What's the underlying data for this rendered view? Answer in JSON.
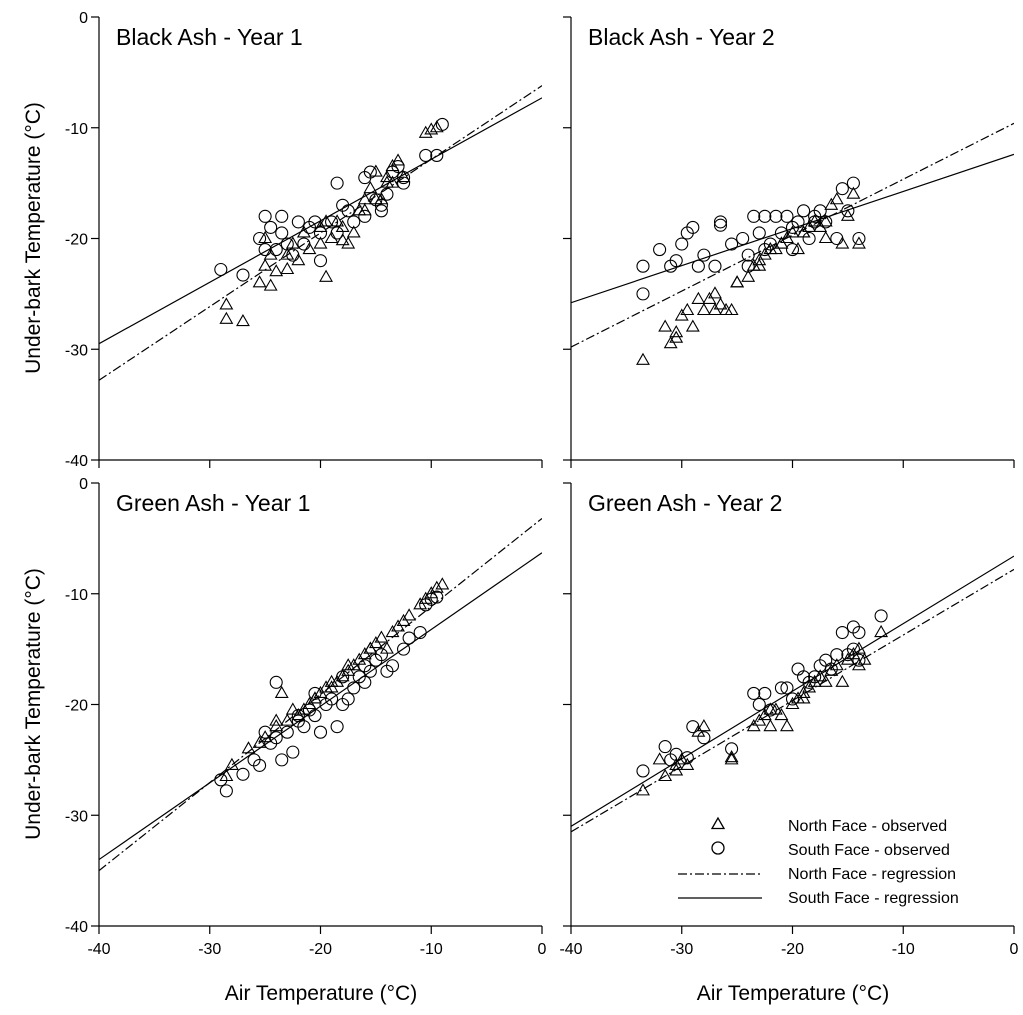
{
  "figure": {
    "xlabel": "Air Temperature (°C)",
    "ylabel": "Under-bark Temperature (°C)"
  },
  "legend": {
    "placement": "bottom-right of Green Ash - Year 2 panel",
    "entries": [
      {
        "label": "North Face - observed",
        "symbol": "triangle"
      },
      {
        "label": "South Face - observed",
        "symbol": "circle"
      },
      {
        "label": "North Face - regression",
        "symbol": "dash-dot-line"
      },
      {
        "label": "South Face - regression",
        "symbol": "solid-line"
      }
    ]
  },
  "chart_data": [
    {
      "type": "scatter",
      "title": "Black Ash - Year 1",
      "xlabel": "",
      "ylabel": "Under-bark Temperature (°C)",
      "xlim": [
        -40,
        0
      ],
      "ylim": [
        -40,
        0
      ],
      "xticks": [
        -40,
        -30,
        -20,
        -10,
        0
      ],
      "yticks": [
        0,
        -10,
        -20,
        -30,
        -40
      ],
      "show_xtick_labels": false,
      "show_ytick_labels": true,
      "series": [
        {
          "name": "North Face - observed",
          "marker": "triangle",
          "x": [
            -28.5,
            -28.5,
            -27,
            -25.5,
            -25,
            -24.5,
            -24,
            -23,
            -22,
            -21,
            -20,
            -19.5,
            -19,
            -18,
            -17,
            -16,
            -15.5,
            -15,
            -14.5,
            -14,
            -13.5,
            -13,
            -12.5,
            -10.5,
            -10,
            -9.5,
            -25,
            -23,
            -21.5,
            -20,
            -18.5,
            -16.5,
            -15,
            -13.5,
            -22.5,
            -19.5,
            -17.5,
            -16,
            -14,
            -24.5,
            -18
          ],
          "y": [
            -27.3,
            -26,
            -27.5,
            -24,
            -22.5,
            -24.3,
            -23,
            -21.5,
            -22,
            -21,
            -20.5,
            -23.5,
            -20,
            -19,
            -19.5,
            -16.5,
            -15.5,
            -14,
            -16.5,
            -15,
            -13.5,
            -13,
            -14.5,
            -10.5,
            -10.2,
            -10,
            -20,
            -22.8,
            -19.5,
            -19,
            -18.5,
            -17.5,
            -16.5,
            -15,
            -20.5,
            -18.5,
            -20.5,
            -17.5,
            -14.5,
            -21.5,
            -20.2
          ]
        },
        {
          "name": "South Face - observed",
          "marker": "circle",
          "x": [
            -29,
            -27,
            -25.5,
            -25,
            -24.5,
            -24,
            -23.5,
            -23,
            -22,
            -21.5,
            -21,
            -20.5,
            -20,
            -19,
            -18.5,
            -18.5,
            -17.5,
            -17,
            -16,
            -15.5,
            -15,
            -14.5,
            -14,
            -13.5,
            -13,
            -12.5,
            -10.5,
            -9.5,
            -9,
            -25,
            -23.5,
            -22.5,
            -20,
            -18,
            -16,
            -14.5,
            -12.5
          ],
          "y": [
            -22.8,
            -23.3,
            -20,
            -18,
            -19,
            -21,
            -19.5,
            -20.5,
            -18.5,
            -20.5,
            -19,
            -18.5,
            -22,
            -18.5,
            -15,
            -19.5,
            -17.5,
            -18.5,
            -14.5,
            -14,
            -16.5,
            -17,
            -16,
            -14,
            -13.5,
            -15,
            -12.5,
            -12.5,
            -9.7,
            -21,
            -18,
            -21.5,
            -19.5,
            -17,
            -18,
            -17.5,
            -14.5
          ]
        },
        {
          "name": "North Face - regression",
          "line": "dash-dot",
          "x": [
            -40,
            0
          ],
          "y": [
            -32.8,
            -6.2
          ]
        },
        {
          "name": "South Face - regression",
          "line": "solid",
          "x": [
            -40,
            0
          ],
          "y": [
            -29.5,
            -7.3
          ]
        }
      ]
    },
    {
      "type": "scatter",
      "title": "Black Ash - Year 2",
      "xlabel": "",
      "ylabel": "",
      "xlim": [
        -40,
        0
      ],
      "ylim": [
        -40,
        0
      ],
      "xticks": [
        -40,
        -30,
        -20,
        -10,
        0
      ],
      "yticks": [
        0,
        -10,
        -20,
        -30,
        -40
      ],
      "show_xtick_labels": false,
      "show_ytick_labels": false,
      "series": [
        {
          "name": "North Face - observed",
          "marker": "triangle",
          "x": [
            -33.5,
            -31.5,
            -31,
            -30.5,
            -30,
            -29.5,
            -29,
            -28.5,
            -28,
            -27.5,
            -27,
            -26.5,
            -26,
            -25.5,
            -25,
            -24,
            -23.5,
            -23,
            -22.5,
            -22,
            -21.5,
            -21,
            -20.5,
            -20,
            -19.5,
            -19,
            -18.5,
            -18,
            -17.5,
            -17,
            -16.5,
            -16,
            -15.5,
            -15,
            -14.5,
            -14,
            -30.5,
            -27,
            -25,
            -23,
            -21,
            -19,
            -17
          ],
          "y": [
            -31,
            -28,
            -29.5,
            -28.5,
            -27,
            -26.5,
            -28,
            -25.5,
            -26.5,
            -25.5,
            -26.5,
            -26,
            -26.5,
            -26.5,
            -24,
            -23.5,
            -22.5,
            -22,
            -21.5,
            -21,
            -21,
            -20.5,
            -20,
            -19.5,
            -21,
            -19.5,
            -19,
            -18.5,
            -19,
            -18.5,
            -17,
            -16.5,
            -20.5,
            -18,
            -16,
            -20.5,
            -29,
            -25,
            -24,
            -22.5,
            -20.5,
            -19.5,
            -20
          ]
        },
        {
          "name": "South Face - observed",
          "marker": "circle",
          "x": [
            -33.5,
            -33.5,
            -32,
            -31,
            -30.5,
            -30,
            -29.5,
            -29,
            -28.5,
            -28,
            -27,
            -26.5,
            -25.5,
            -24.5,
            -24,
            -23.5,
            -23,
            -22.5,
            -22,
            -21.5,
            -21,
            -20.5,
            -20,
            -19.5,
            -19,
            -18.5,
            -18,
            -17.5,
            -17,
            -16,
            -15.5,
            -15,
            -14.5,
            -14,
            -26.5,
            -24,
            -22.5,
            -20,
            -18
          ],
          "y": [
            -22.5,
            -25,
            -21,
            -22.5,
            -22,
            -20.5,
            -19.5,
            -19,
            -22.5,
            -21.5,
            -22.5,
            -18.5,
            -20.5,
            -20,
            -21.5,
            -18,
            -19.5,
            -18,
            -20.5,
            -18,
            -19.5,
            -18,
            -21,
            -18.5,
            -17.5,
            -20,
            -18,
            -17.5,
            -18.5,
            -20,
            -15.5,
            -17.5,
            -15,
            -20,
            -18.8,
            -22.5,
            -21,
            -19,
            -18.5
          ]
        },
        {
          "name": "North Face - regression",
          "line": "dash-dot",
          "x": [
            -40,
            0
          ],
          "y": [
            -29.8,
            -9.6
          ]
        },
        {
          "name": "South Face - regression",
          "line": "solid",
          "x": [
            -40,
            0
          ],
          "y": [
            -25.8,
            -12.4
          ]
        }
      ]
    },
    {
      "type": "scatter",
      "title": "Green Ash - Year 1",
      "xlabel": "Air Temperature (°C)",
      "ylabel": "Under-bark Temperature (°C)",
      "xlim": [
        -40,
        0
      ],
      "ylim": [
        -40,
        0
      ],
      "xticks": [
        -40,
        -30,
        -20,
        -10,
        0
      ],
      "yticks": [
        0,
        -10,
        -20,
        -30,
        -40
      ],
      "show_xtick_labels": true,
      "show_ytick_labels": true,
      "series": [
        {
          "name": "North Face - observed",
          "marker": "triangle",
          "x": [
            -28.5,
            -28,
            -26.5,
            -25.5,
            -25,
            -24,
            -23.5,
            -23,
            -22,
            -21.5,
            -21,
            -20.5,
            -20,
            -19.5,
            -19,
            -18.5,
            -18,
            -17.5,
            -17,
            -16.5,
            -16,
            -15.5,
            -15,
            -14.5,
            -14,
            -13.5,
            -13,
            -12.5,
            -12,
            -11,
            -10.5,
            -10,
            -9.5,
            -9,
            -24,
            -22.5,
            -20.5,
            -19,
            -17.5,
            -15.5
          ],
          "y": [
            -26.5,
            -25.5,
            -24,
            -23.5,
            -23,
            -22,
            -19,
            -21.5,
            -21,
            -20.5,
            -20,
            -19.5,
            -19,
            -18.5,
            -18.5,
            -18,
            -17.5,
            -17,
            -16.5,
            -16,
            -15.5,
            -15,
            -14.5,
            -14,
            -15,
            -13.5,
            -13,
            -12.5,
            -12,
            -11,
            -10.5,
            -10,
            -9.5,
            -9.2,
            -21.5,
            -20.5,
            -19.5,
            -18,
            -16.5,
            -15
          ]
        },
        {
          "name": "South Face - observed",
          "marker": "circle",
          "x": [
            -29,
            -28.5,
            -27,
            -26,
            -25.5,
            -25,
            -24.5,
            -24,
            -23.5,
            -23,
            -22.5,
            -22,
            -21.5,
            -21,
            -20.5,
            -20,
            -19.5,
            -19,
            -18.5,
            -18,
            -17.5,
            -17,
            -16.5,
            -16,
            -15.5,
            -15,
            -14.5,
            -14,
            -13.5,
            -12.5,
            -12,
            -11,
            -10.5,
            -10,
            -9.5,
            -24,
            -22,
            -20.5,
            -18,
            -16
          ],
          "y": [
            -26.8,
            -27.8,
            -26.3,
            -25,
            -25.5,
            -22.5,
            -23.5,
            -18,
            -25,
            -22.5,
            -24.3,
            -21,
            -22,
            -20.5,
            -21,
            -22.5,
            -20,
            -19.5,
            -22,
            -20,
            -19.5,
            -18.5,
            -17.5,
            -18,
            -17,
            -16,
            -15.5,
            -17,
            -16.5,
            -15,
            -14,
            -13.5,
            -11,
            -10.5,
            -10.3,
            -23,
            -21.5,
            -19,
            -17.5,
            -16.5
          ]
        },
        {
          "name": "North Face - regression",
          "line": "dash-dot",
          "x": [
            -40,
            0
          ],
          "y": [
            -35,
            -3.2
          ]
        },
        {
          "name": "South Face - regression",
          "line": "solid",
          "x": [
            -40,
            0
          ],
          "y": [
            -34,
            -6.3
          ]
        }
      ]
    },
    {
      "type": "scatter",
      "title": "Green Ash - Year 2",
      "xlabel": "Air Temperature (°C)",
      "ylabel": "",
      "xlim": [
        -40,
        0
      ],
      "ylim": [
        -40,
        0
      ],
      "xticks": [
        -40,
        -30,
        -20,
        -10,
        0
      ],
      "yticks": [
        0,
        -10,
        -20,
        -30,
        -40
      ],
      "show_xtick_labels": true,
      "show_ytick_labels": false,
      "series": [
        {
          "name": "North Face - observed",
          "marker": "triangle",
          "x": [
            -33.5,
            -32,
            -31.5,
            -30.5,
            -30,
            -29.5,
            -28.5,
            -28,
            -25.5,
            -25.5,
            -23.5,
            -23,
            -22.5,
            -22,
            -21.5,
            -21,
            -20.5,
            -20,
            -19.5,
            -19,
            -18.5,
            -18,
            -17.5,
            -17,
            -16.5,
            -16,
            -15.5,
            -15,
            -14.5,
            -14,
            -14,
            -13.5,
            -12,
            -30.5,
            -22,
            -19
          ],
          "y": [
            -27.8,
            -25,
            -26.5,
            -25.5,
            -25,
            -25.5,
            -22.5,
            -22,
            -25,
            -24.8,
            -22,
            -21.5,
            -21,
            -20.5,
            -20.5,
            -21,
            -22,
            -20,
            -19.5,
            -19,
            -18.5,
            -18,
            -17.5,
            -18,
            -17,
            -16.5,
            -18,
            -16,
            -15.5,
            -15,
            -16.5,
            -16,
            -13.5,
            -26,
            -22,
            -19.5
          ]
        },
        {
          "name": "South Face - observed",
          "marker": "circle",
          "x": [
            -33.5,
            -31.5,
            -31,
            -30.5,
            -29.5,
            -29,
            -28,
            -25.5,
            -23.5,
            -23,
            -22.5,
            -22,
            -21,
            -20.5,
            -20,
            -19.5,
            -19,
            -18.5,
            -18,
            -17.5,
            -17,
            -16.5,
            -16,
            -15.5,
            -15,
            -14.5,
            -14.5,
            -14,
            -14,
            -12
          ],
          "y": [
            -26,
            -23.8,
            -25,
            -24.5,
            -24.8,
            -22,
            -23,
            -24,
            -19,
            -20,
            -19,
            -20.5,
            -18.5,
            -18.5,
            -19.5,
            -16.8,
            -17.5,
            -18,
            -17.5,
            -16.5,
            -16,
            -16.8,
            -15.5,
            -13.5,
            -15.5,
            -13,
            -15,
            -13.5,
            -16,
            -12
          ]
        },
        {
          "name": "North Face - regression",
          "line": "dash-dot",
          "x": [
            -40,
            0
          ],
          "y": [
            -31.5,
            -7.8
          ]
        },
        {
          "name": "South Face - regression",
          "line": "solid",
          "x": [
            -40,
            0
          ],
          "y": [
            -31,
            -6.6
          ]
        }
      ]
    }
  ]
}
